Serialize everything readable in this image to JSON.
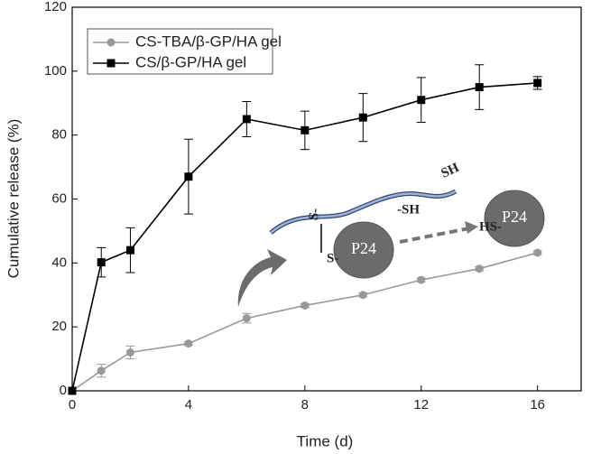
{
  "chart_data": {
    "type": "line",
    "x_label": "Time (d)",
    "y_label": "Cumulative release (%)",
    "xlim": [
      0,
      17.5
    ],
    "ylim": [
      0,
      120
    ],
    "xticks": [
      0,
      4,
      8,
      12,
      16
    ],
    "yticks": [
      0,
      20,
      40,
      60,
      80,
      100,
      120
    ],
    "x": [
      0,
      1,
      2,
      4,
      6,
      8,
      10,
      12,
      14,
      16
    ],
    "series": [
      {
        "name": "CS-TBA/β-GP/HA gel",
        "color": "#999999",
        "marker": "circle",
        "values": [
          0,
          6.3,
          12,
          14.8,
          22.7,
          26.7,
          30,
          34.7,
          38.2,
          43.2
        ],
        "errors": [
          0,
          2,
          2,
          0.6,
          1.5,
          0.6,
          0.6,
          0.6,
          0.6,
          0.6
        ]
      },
      {
        "name": "CS/β-GP/HA gel",
        "color": "#000000",
        "marker": "square",
        "values": [
          0,
          40.2,
          44,
          67,
          85,
          81.5,
          85.5,
          91,
          95,
          96.3
        ],
        "errors": [
          0,
          4.6,
          7,
          11.7,
          5.5,
          6,
          7.5,
          7,
          7,
          2
        ]
      }
    ],
    "annotations": [
      "SH",
      "-SH",
      "S-",
      "S-",
      "P24",
      "HS-",
      "P24"
    ]
  }
}
